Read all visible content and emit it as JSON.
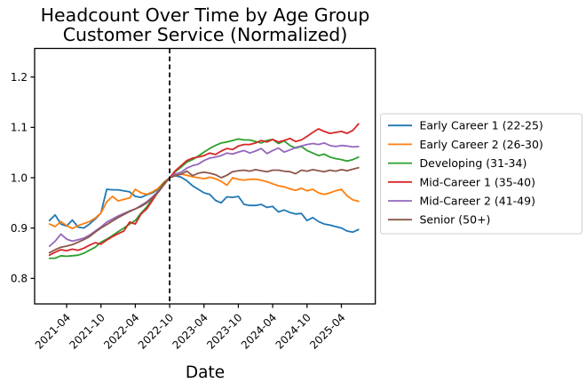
{
  "figure": {
    "background": "#ffffff",
    "text_color": "#000000",
    "legend_border_color": "#cccccc"
  },
  "chart_data": {
    "type": "line",
    "title": "Headcount Over Time by Age Group",
    "subtitle": "Customer Service (Normalized)",
    "xlabel": "Date",
    "ylabel": "",
    "grid": false,
    "legend_position": "outside-right",
    "y_ticks": [
      0.8,
      0.9,
      1.0,
      1.1,
      1.2
    ],
    "y_tick_labels": [
      "0.8",
      "0.9",
      "1.0",
      "1.1",
      "1.2"
    ],
    "ylim": [
      0.75,
      1.25
    ],
    "x_tick_labels": [
      "2021-04",
      "2021-10",
      "2022-04",
      "2022-10",
      "2023-04",
      "2023-10",
      "2024-04",
      "2024-10",
      "2025-04"
    ],
    "normalization_vline": {
      "x": "2022-10",
      "style": "dashed",
      "color": "#000000",
      "value_at_line": 1.0
    },
    "x_months": [
      "2021-01",
      "2021-02",
      "2021-03",
      "2021-04",
      "2021-05",
      "2021-06",
      "2021-07",
      "2021-08",
      "2021-09",
      "2021-10",
      "2021-11",
      "2021-12",
      "2022-01",
      "2022-02",
      "2022-03",
      "2022-04",
      "2022-05",
      "2022-06",
      "2022-07",
      "2022-08",
      "2022-09",
      "2022-10",
      "2022-11",
      "2022-12",
      "2023-01",
      "2023-02",
      "2023-03",
      "2023-04",
      "2023-05",
      "2023-06",
      "2023-07",
      "2023-08",
      "2023-09",
      "2023-10",
      "2023-11",
      "2023-12",
      "2024-01",
      "2024-02",
      "2024-03",
      "2024-04",
      "2024-05",
      "2024-06",
      "2024-07",
      "2024-08",
      "2024-09",
      "2024-10",
      "2024-11",
      "2024-12",
      "2025-01",
      "2025-02",
      "2025-03",
      "2025-04",
      "2025-05",
      "2025-06",
      "2025-07"
    ],
    "series": [
      {
        "name": "Early Career 1 (22-25)",
        "color": "#1f77b4",
        "values": [
          0.915,
          0.926,
          0.908,
          0.904,
          0.916,
          0.902,
          0.9,
          0.908,
          0.918,
          0.93,
          0.977,
          0.976,
          0.976,
          0.974,
          0.972,
          0.963,
          0.961,
          0.966,
          0.97,
          0.977,
          0.99,
          1.0,
          1.004,
          1.001,
          0.994,
          0.984,
          0.977,
          0.97,
          0.967,
          0.955,
          0.95,
          0.962,
          0.961,
          0.963,
          0.947,
          0.945,
          0.945,
          0.947,
          0.941,
          0.943,
          0.932,
          0.936,
          0.931,
          0.928,
          0.929,
          0.915,
          0.921,
          0.913,
          0.908,
          0.906,
          0.903,
          0.9,
          0.894,
          0.892,
          0.897
        ]
      },
      {
        "name": "Early Career 2 (26-30)",
        "color": "#ff7f0e",
        "values": [
          0.908,
          0.903,
          0.913,
          0.905,
          0.899,
          0.905,
          0.909,
          0.913,
          0.92,
          0.93,
          0.952,
          0.963,
          0.954,
          0.957,
          0.96,
          0.977,
          0.97,
          0.967,
          0.972,
          0.979,
          0.991,
          1.0,
          1.004,
          1.007,
          1.005,
          1.002,
          1.0,
          0.998,
          1.001,
          0.998,
          0.993,
          0.985,
          1.0,
          0.997,
          0.995,
          0.997,
          0.997,
          0.995,
          0.992,
          0.988,
          0.984,
          0.982,
          0.978,
          0.975,
          0.979,
          0.974,
          0.977,
          0.97,
          0.967,
          0.97,
          0.974,
          0.977,
          0.964,
          0.956,
          0.953
        ]
      },
      {
        "name": "Developing (31-34)",
        "color": "#2ca02c",
        "values": [
          0.84,
          0.84,
          0.845,
          0.844,
          0.845,
          0.846,
          0.85,
          0.856,
          0.862,
          0.872,
          0.878,
          0.885,
          0.893,
          0.9,
          0.908,
          0.915,
          0.93,
          0.942,
          0.958,
          0.974,
          0.99,
          1.0,
          1.012,
          1.021,
          1.031,
          1.036,
          1.043,
          1.051,
          1.058,
          1.064,
          1.069,
          1.071,
          1.074,
          1.077,
          1.075,
          1.075,
          1.072,
          1.069,
          1.074,
          1.076,
          1.068,
          1.073,
          1.064,
          1.059,
          1.062,
          1.054,
          1.049,
          1.044,
          1.047,
          1.041,
          1.038,
          1.036,
          1.033,
          1.036,
          1.041
        ]
      },
      {
        "name": "Mid-Career 1 (35-40)",
        "color": "#d62728",
        "values": [
          0.846,
          0.852,
          0.857,
          0.855,
          0.858,
          0.856,
          0.86,
          0.866,
          0.871,
          0.868,
          0.876,
          0.883,
          0.889,
          0.894,
          0.912,
          0.908,
          0.928,
          0.938,
          0.955,
          0.972,
          0.988,
          1.0,
          1.014,
          1.024,
          1.034,
          1.039,
          1.041,
          1.044,
          1.049,
          1.046,
          1.053,
          1.058,
          1.056,
          1.063,
          1.066,
          1.066,
          1.069,
          1.074,
          1.071,
          1.076,
          1.071,
          1.074,
          1.078,
          1.072,
          1.075,
          1.082,
          1.09,
          1.097,
          1.092,
          1.088,
          1.09,
          1.092,
          1.088,
          1.094,
          1.107
        ]
      },
      {
        "name": "Mid-Career 2 (41-49)",
        "color": "#9467bd",
        "values": [
          0.864,
          0.874,
          0.888,
          0.878,
          0.874,
          0.877,
          0.88,
          0.886,
          0.894,
          0.902,
          0.912,
          0.918,
          0.924,
          0.929,
          0.934,
          0.938,
          0.945,
          0.952,
          0.962,
          0.973,
          0.986,
          1.0,
          1.007,
          1.011,
          1.019,
          1.024,
          1.027,
          1.034,
          1.039,
          1.041,
          1.044,
          1.049,
          1.047,
          1.051,
          1.054,
          1.049,
          1.053,
          1.058,
          1.048,
          1.054,
          1.059,
          1.051,
          1.055,
          1.06,
          1.063,
          1.066,
          1.068,
          1.066,
          1.069,
          1.064,
          1.062,
          1.064,
          1.063,
          1.061,
          1.062
        ]
      },
      {
        "name": "Senior (50+)",
        "color": "#8c564b",
        "values": [
          0.851,
          0.857,
          0.862,
          0.864,
          0.867,
          0.872,
          0.877,
          0.883,
          0.892,
          0.9,
          0.907,
          0.914,
          0.921,
          0.927,
          0.933,
          0.938,
          0.943,
          0.95,
          0.96,
          0.971,
          0.986,
          1.0,
          1.004,
          1.007,
          1.013,
          1.004,
          1.009,
          1.011,
          1.009,
          1.006,
          1.0,
          1.005,
          1.012,
          1.014,
          1.015,
          1.013,
          1.016,
          1.014,
          1.012,
          1.015,
          1.015,
          1.013,
          1.012,
          1.008,
          1.015,
          1.013,
          1.016,
          1.014,
          1.012,
          1.015,
          1.013,
          1.016,
          1.014,
          1.017,
          1.02
        ]
      }
    ]
  }
}
